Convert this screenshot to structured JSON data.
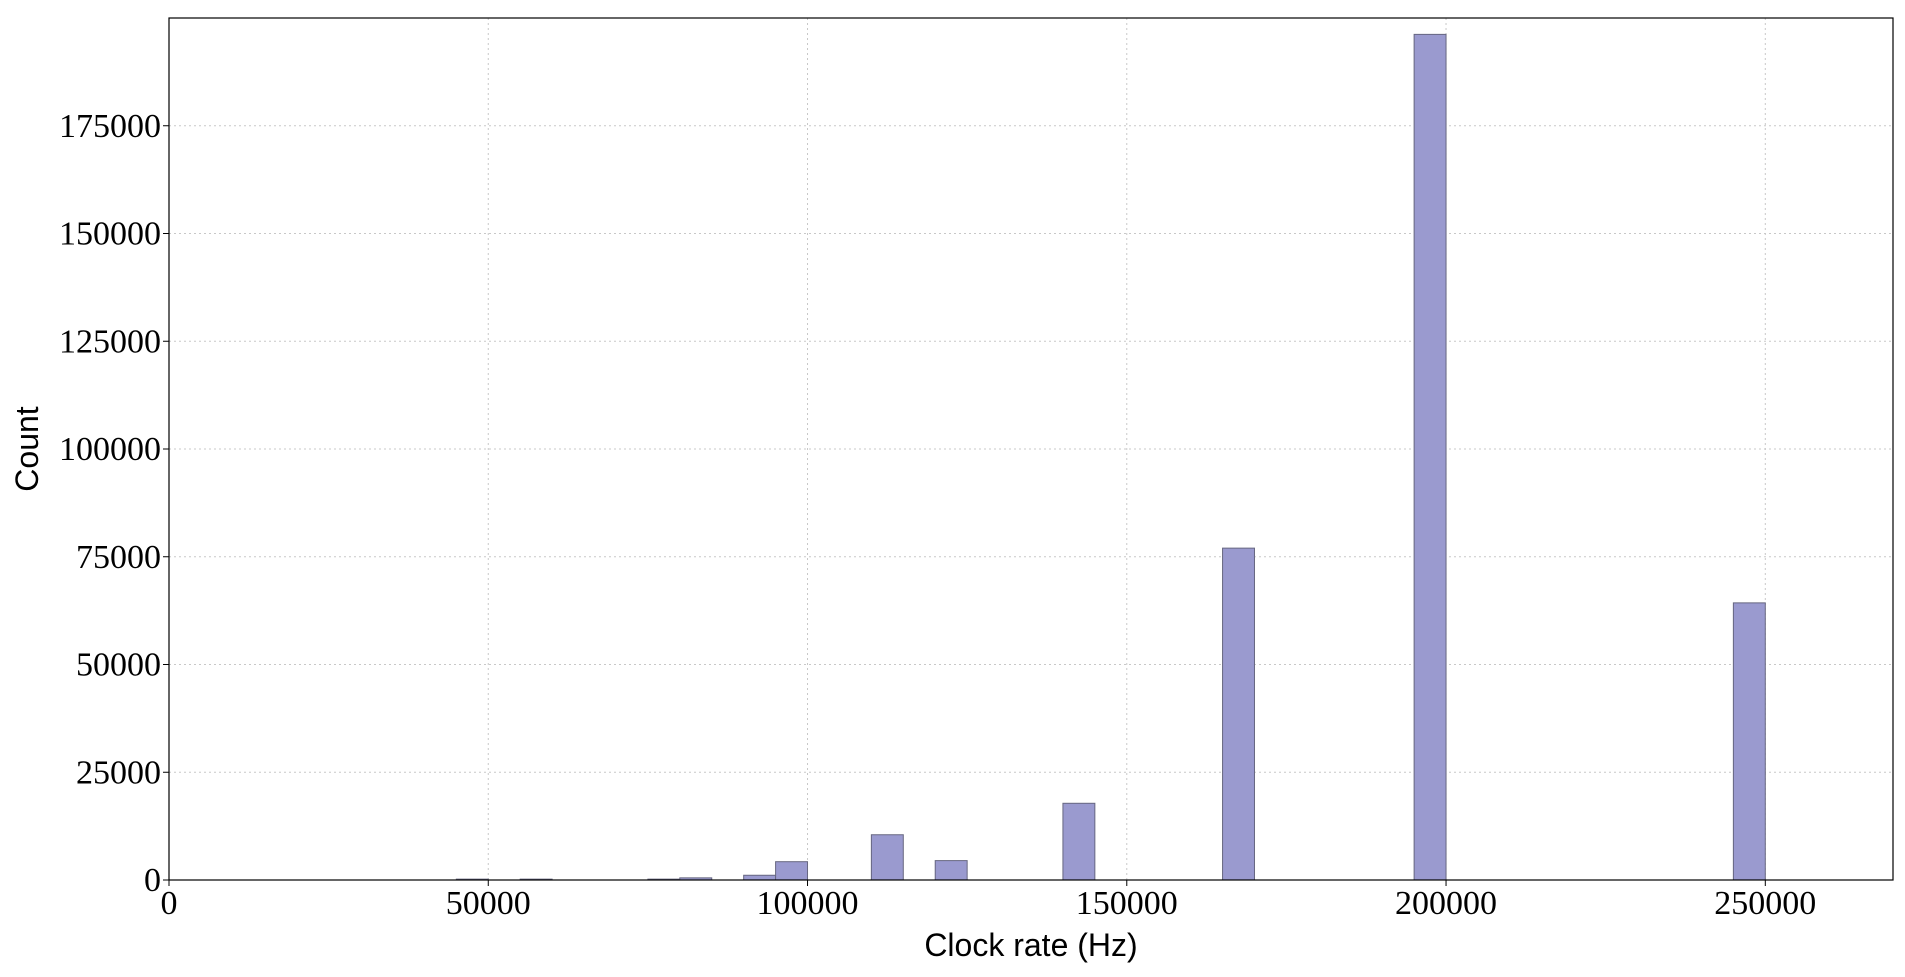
{
  "chart_data": {
    "type": "histogram",
    "x_label": "Clock rate (Hz)",
    "y_label": "Count",
    "bins": [
      45000,
      50000,
      55000,
      60000,
      65000,
      70000,
      75000,
      80000,
      85000,
      90000,
      95000,
      100000,
      105000,
      110000,
      115000,
      120000,
      125000,
      130000,
      135000,
      140000,
      145000,
      150000,
      155000,
      160000,
      165000,
      170000,
      175000,
      180000,
      185000,
      190000,
      195000,
      200000,
      205000,
      210000,
      215000,
      220000,
      225000,
      230000,
      235000,
      240000,
      245000,
      250000
    ],
    "values": [
      200,
      0,
      200,
      0,
      0,
      0,
      200,
      500,
      0,
      1100,
      4250,
      0,
      0,
      10500,
      0,
      4500,
      0,
      0,
      0,
      17800,
      0,
      0,
      0,
      0,
      77000,
      0,
      0,
      0,
      0,
      0,
      196200,
      0,
      0,
      0,
      0,
      0,
      0,
      0,
      0,
      0,
      64300
    ],
    "color": "#9a9acf",
    "edgecolor": "#666680",
    "xlim": [
      0,
      270000
    ],
    "ylim": [
      0,
      200000
    ],
    "xticks": [
      0,
      50000,
      100000,
      150000,
      200000,
      250000
    ],
    "yticks": [
      0,
      25000,
      50000,
      75000,
      100000,
      125000,
      150000,
      175000
    ],
    "grid": true
  }
}
